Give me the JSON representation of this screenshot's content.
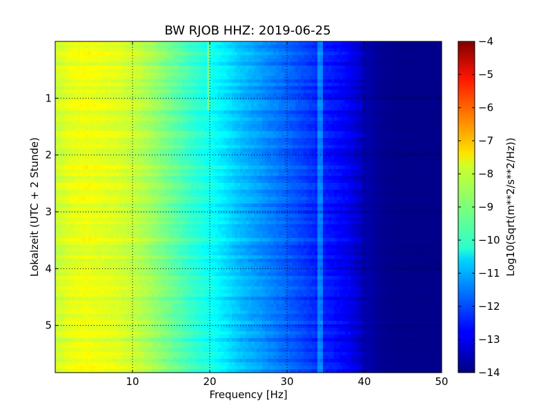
{
  "chart_data": {
    "type": "heatmap",
    "title": "BW RJOB HHZ: 2019-06-25",
    "xlabel": "Frequency [Hz]",
    "ylabel": "Lokalzeit (UTC + 2 Stunde)",
    "xlim": [
      0,
      50
    ],
    "ylim": [
      0,
      5.83
    ],
    "y_inverted": true,
    "grid": true,
    "x_ticks": [
      "10",
      "20",
      "30",
      "40",
      "50"
    ],
    "x_tick_values": [
      10,
      20,
      30,
      40,
      50
    ],
    "y_ticks": [
      "1",
      "2",
      "3",
      "4",
      "5"
    ],
    "y_tick_values": [
      1,
      2,
      3,
      4,
      5
    ],
    "colorbar": {
      "label": "Log10(Sqrt(m**2/s**2/Hz))",
      "range": [
        -14,
        -4
      ],
      "ticks": [
        "−4",
        "−5",
        "−6",
        "−7",
        "−8",
        "−9",
        "−10",
        "−11",
        "−12",
        "−13",
        "−14"
      ],
      "tick_values": [
        -4,
        -5,
        -6,
        -7,
        -8,
        -9,
        -10,
        -11,
        -12,
        -13,
        -14
      ],
      "colormap": "jet"
    },
    "spectral_profile": {
      "frequency_hz": [
        0,
        2,
        4,
        6,
        8,
        10,
        12,
        14,
        16,
        18,
        20,
        22,
        24,
        26,
        28,
        30,
        32,
        34,
        36,
        38,
        40,
        42,
        44,
        46,
        48,
        50
      ],
      "value": [
        -8.3,
        -8.0,
        -7.9,
        -8.0,
        -8.1,
        -8.3,
        -8.6,
        -9.0,
        -9.4,
        -9.8,
        -10.1,
        -10.5,
        -10.9,
        -11.2,
        -11.5,
        -11.8,
        -12.1,
        -12.4,
        -12.6,
        -12.9,
        -13.5,
        -13.8,
        -13.9,
        -13.9,
        -13.9,
        -13.9
      ]
    },
    "features": [
      {
        "type": "tonal_line",
        "frequency_hz": 34.3,
        "time_range": [
          0,
          5.83
        ]
      },
      {
        "type": "tonal_line",
        "frequency_hz": 19.8,
        "time_range": [
          0,
          1.2
        ]
      }
    ]
  }
}
